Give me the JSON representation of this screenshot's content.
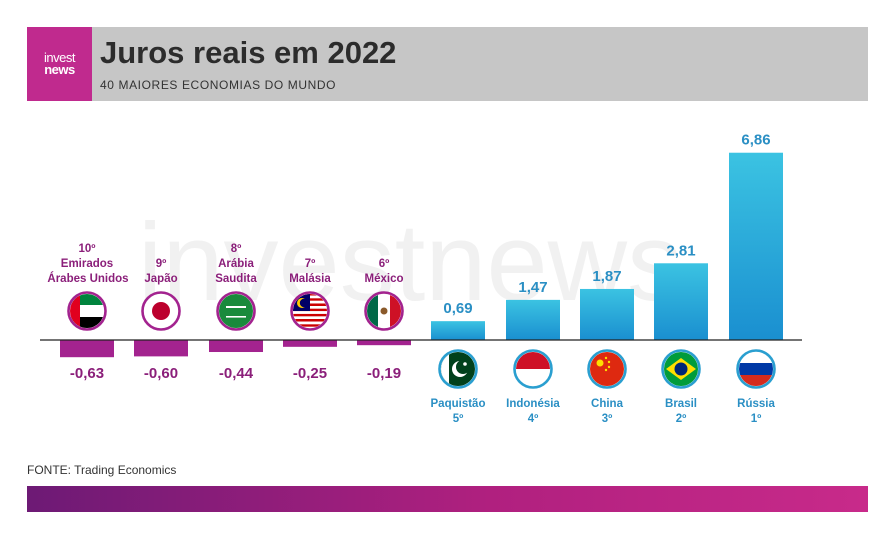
{
  "header": {
    "logo_line1": "invest",
    "logo_line2": "news",
    "title": "Juros reais em 2022",
    "subtitle": "40 MAIORES ECONOMIAS DO MUNDO"
  },
  "watermark": "investnews",
  "source": "FONTE: Trading Economics",
  "colors": {
    "negative": "#a3238f",
    "negative_text": "#8b1f7a",
    "positive_top": "#3bbfe0",
    "positive_bottom": "#1a8fd0",
    "positive_text": "#2a8fc4",
    "header_bg": "#c6c6c6",
    "logo_bg": "#c02a8e"
  },
  "chart_data": {
    "type": "bar",
    "categories": [
      "Emirados Árabes Unidos",
      "Japão",
      "Arábia Saudita",
      "Malásia",
      "México",
      "Paquistão",
      "Indonésia",
      "China",
      "Brasil",
      "Rússia"
    ],
    "values": [
      -0.63,
      -0.6,
      -0.44,
      -0.25,
      -0.19,
      0.69,
      1.47,
      1.87,
      2.81,
      6.86
    ],
    "value_labels": [
      "-0,63",
      "-0,60",
      "-0,44",
      "-0,25",
      "-0,19",
      "0,69",
      "1,47",
      "1,87",
      "2,81",
      "6,86"
    ],
    "label_lines": [
      [
        "10º",
        "Emirados",
        "Árabes Unidos"
      ],
      [
        "9º",
        "Japão"
      ],
      [
        "8º",
        "Arábia",
        "Saudita"
      ],
      [
        "7º",
        "Malásia"
      ],
      [
        "6º",
        "México"
      ],
      [
        "Paquistão",
        "5º"
      ],
      [
        "Indonésia",
        "4º"
      ],
      [
        "China",
        "3º"
      ],
      [
        "Brasil",
        "2º"
      ],
      [
        "Rússia",
        "1º"
      ]
    ],
    "flags": [
      "uae-flag-icon",
      "japan-flag-icon",
      "saudi-flag-icon",
      "malaysia-flag-icon",
      "mexico-flag-icon",
      "pakistan-flag-icon",
      "indonesia-flag-icon",
      "china-flag-icon",
      "brazil-flag-icon",
      "russia-flag-icon"
    ],
    "title": "Juros reais em 2022",
    "subtitle": "40 MAIORES ECONOMIAS DO MUNDO",
    "ylim": [
      -0.63,
      6.86
    ],
    "grid": false,
    "legend": "none"
  }
}
